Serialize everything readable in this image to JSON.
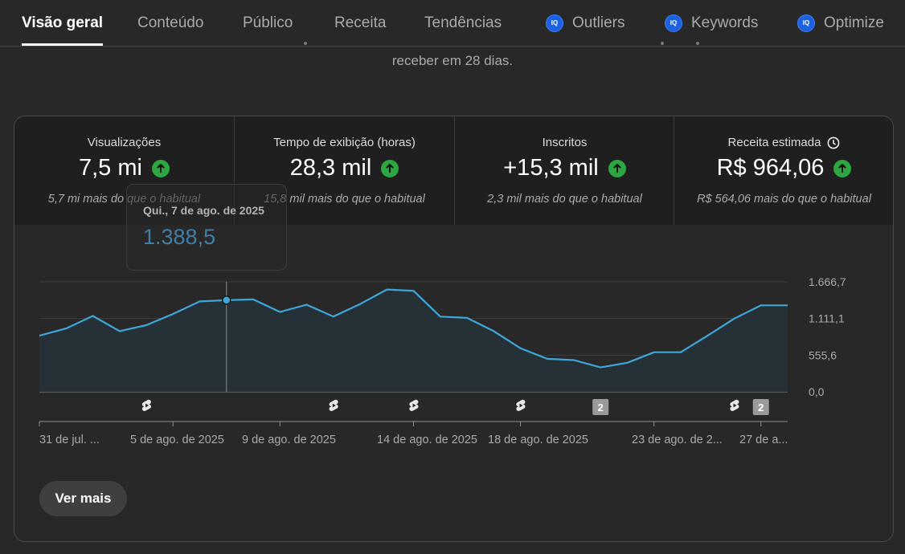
{
  "tabs": [
    {
      "label": "Visão geral",
      "active": true
    },
    {
      "label": "Conteúdo"
    },
    {
      "label": "Público"
    },
    {
      "label": "Receita"
    },
    {
      "label": "Tendências"
    },
    {
      "label": "Outliers",
      "icon": "vidiq-icon",
      "badge": "IQ"
    },
    {
      "label": "Keywords",
      "icon": "vidiq-icon",
      "badge": "IQ"
    },
    {
      "label": "Optimize",
      "icon": "vidiq-icon",
      "badge": "IQ"
    }
  ],
  "notice": {
    "text": "receber em 28 dias."
  },
  "metrics": [
    {
      "label": "Visualizações",
      "value": "7,5 mi",
      "sub": "5,7 mi mais do que o habitual",
      "trend_icon": "arrow-up-icon"
    },
    {
      "label": "Tempo de exibição (horas)",
      "value": "28,3 mil",
      "sub": "15,8 mil mais do que o habitual",
      "trend_icon": "arrow-up-icon"
    },
    {
      "label": "Inscritos",
      "value": "+15,3 mil",
      "sub": "2,3 mil mais do que o habitual",
      "trend_icon": "arrow-up-icon"
    },
    {
      "label": "Receita estimada",
      "value": "R$ 964,06",
      "sub": "R$ 564,06 mais do que o habitual",
      "trend_icon": "arrow-up-icon",
      "label_icon": "clock-icon"
    }
  ],
  "tooltip": {
    "date": "Qui., 7 de ago. de 2025",
    "value": "1.388,5"
  },
  "more_button": {
    "label": "Ver mais"
  },
  "colors": {
    "line": "#3ea6d8",
    "fill": "#263238",
    "accent_green": "#2ba640",
    "bg": "#282828"
  },
  "chart_data": {
    "type": "area",
    "x": [
      "31 de jul.",
      "1 de ago.",
      "2 de ago.",
      "3 de ago.",
      "4 de ago.",
      "5 de ago.",
      "6 de ago.",
      "7 de ago.",
      "8 de ago.",
      "9 de ago.",
      "10 de ago.",
      "11 de ago.",
      "12 de ago.",
      "13 de ago.",
      "14 de ago.",
      "15 de ago.",
      "16 de ago.",
      "17 de ago.",
      "18 de ago.",
      "19 de ago.",
      "20 de ago.",
      "21 de ago.",
      "22 de ago.",
      "23 de ago.",
      "24 de ago.",
      "25 de ago.",
      "26 de ago.",
      "27 de ago.",
      "28 de ago."
    ],
    "values": [
      850,
      960,
      1150,
      920,
      1010,
      1180,
      1370,
      1388.5,
      1400,
      1210,
      1320,
      1140,
      1330,
      1550,
      1530,
      1140,
      1120,
      920,
      660,
      500,
      480,
      370,
      440,
      600,
      600,
      850,
      1110,
      1310,
      1310
    ],
    "ylim": [
      0,
      1666.7
    ],
    "yticks": [
      "1.666,7",
      "1.111,1",
      "555,6",
      "0,0"
    ],
    "xtick_labels": [
      "31 de jul. ...",
      "5 de ago. de 2025",
      "9 de ago. de 2025",
      "14 de ago. de 2025",
      "18 de ago. de 2025",
      "23 de ago. de 2...",
      "27 de a..."
    ],
    "highlight_index": 7,
    "markers": [
      {
        "type": "shorts-icon",
        "at": "4 de ago."
      },
      {
        "type": "shorts-icon",
        "at": "11 de ago."
      },
      {
        "type": "shorts-icon",
        "at": "14 de ago."
      },
      {
        "type": "shorts-icon",
        "at": "18 de ago."
      },
      {
        "type": "count-badge",
        "label": "2",
        "at": "21 de ago."
      },
      {
        "type": "shorts-icon",
        "at": "26 de ago."
      },
      {
        "type": "count-badge",
        "label": "2",
        "at": "27 de ago."
      }
    ]
  }
}
